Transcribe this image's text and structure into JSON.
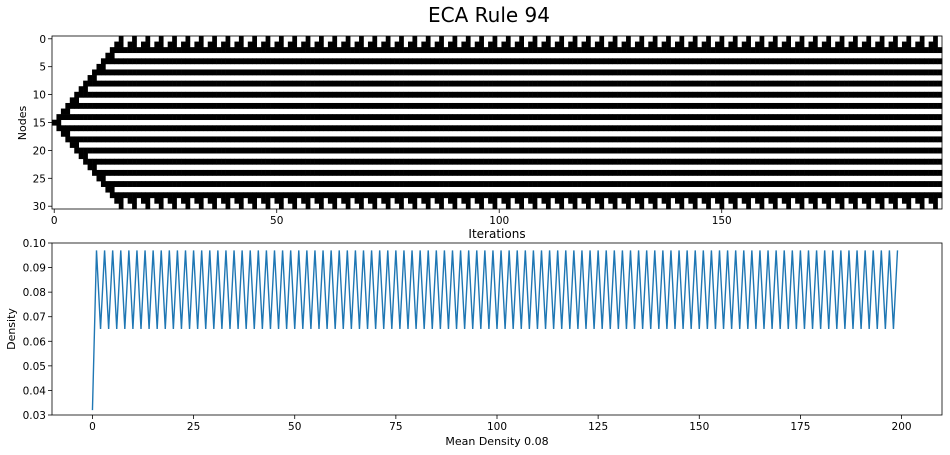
{
  "figure": {
    "title": "ECA Rule 94"
  },
  "chart_data": [
    {
      "type": "heatmap",
      "name": "spacetime",
      "xlabel": "Iterations",
      "ylabel": "Nodes",
      "xlim": [
        0,
        199
      ],
      "ylim": [
        30,
        0
      ],
      "xticks": [
        0,
        50,
        100,
        150
      ],
      "yticks": [
        0,
        5,
        10,
        15,
        20,
        25,
        30
      ],
      "nodes": 31,
      "iterations": 200,
      "colors": {
        "on": "#000000",
        "off": "#ffffff"
      },
      "rule": 94,
      "initial_active_nodes": [
        15
      ],
      "pattern": "pairs of active cells (on-runs of width 2) forming diagonal stripes; ~15 iteration period"
    },
    {
      "type": "line",
      "name": "density",
      "xlabel": "Mean Density 0.08",
      "ylabel": "Density",
      "xlim": [
        -10,
        210
      ],
      "ylim": [
        0.03,
        0.1
      ],
      "xticks": [
        0,
        25,
        50,
        75,
        100,
        125,
        150,
        175,
        200
      ],
      "yticks": [
        0.03,
        0.04,
        0.05,
        0.06,
        0.07,
        0.08,
        0.09,
        0.1
      ],
      "ytick_labels": [
        "0.03",
        "0.04",
        "0.05",
        "0.06",
        "0.07",
        "0.08",
        "0.09",
        "0.10"
      ],
      "line_color": "#1f77b4",
      "series": [
        {
          "x_start": 0,
          "x_end": 199,
          "first_value": 0.032,
          "odd_value": 0.097,
          "even_value": 0.065
        }
      ],
      "mean_density": 0.08
    }
  ]
}
